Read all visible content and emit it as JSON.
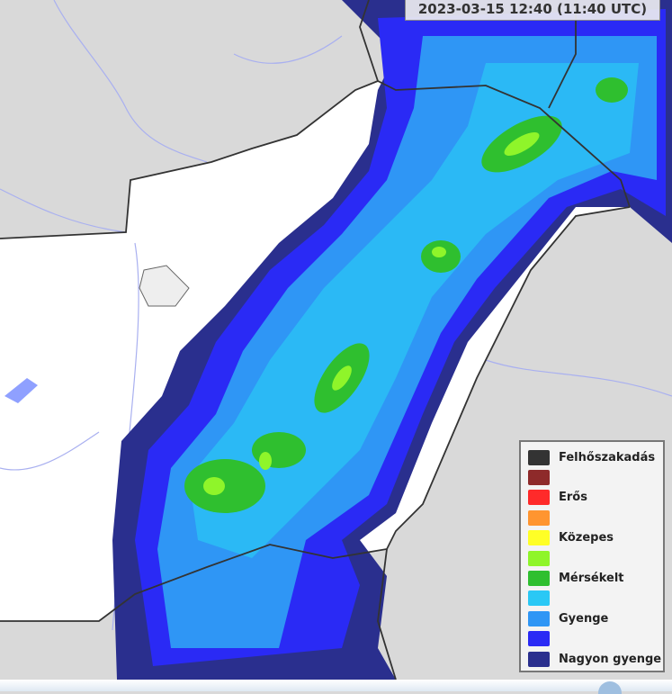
{
  "timestamp": "2023-03-15 12:40 (11:40 UTC)",
  "legend": {
    "items": [
      {
        "label": "Felhőszakadás",
        "color": "#333333"
      },
      {
        "label": "",
        "color": "#8e2a2a"
      },
      {
        "label": "Erős",
        "color": "#ff2a2a"
      },
      {
        "label": "",
        "color": "#ff9530"
      },
      {
        "label": "Közepes",
        "color": "#ffff26"
      },
      {
        "label": "",
        "color": "#8ff52a"
      },
      {
        "label": "Mérsékelt",
        "color": "#2fbf2f"
      },
      {
        "label": "",
        "color": "#2ac8f5"
      },
      {
        "label": "Gyenge",
        "color": "#2f96f5"
      },
      {
        "label": "",
        "color": "#2a2af5"
      },
      {
        "label": "Nagyon gyenge",
        "color": "#2a2f8e"
      }
    ]
  }
}
